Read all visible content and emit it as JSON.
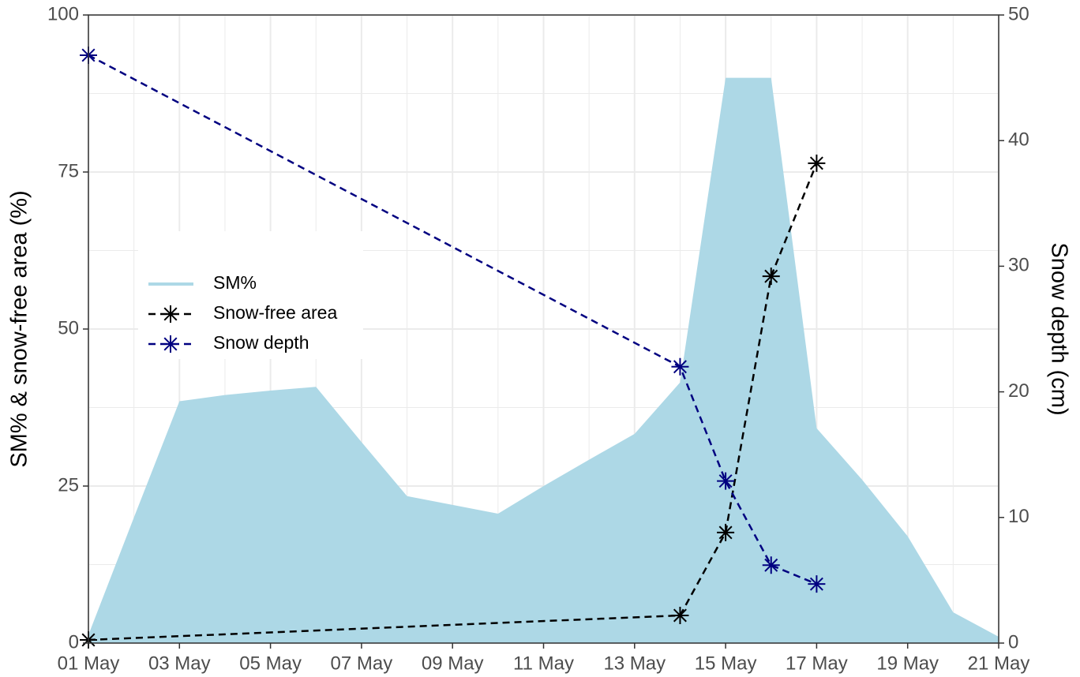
{
  "chart_data": {
    "type": "line",
    "y_label": "SM% & snow-free area (%)",
    "y2_label": "Snow depth (cm)",
    "xlim": [
      "01 May",
      "21 May"
    ],
    "xticks": [
      "01 May",
      "03 May",
      "05 May",
      "07 May",
      "09 May",
      "11 May",
      "13 May",
      "15 May",
      "17 May",
      "19 May",
      "21 May"
    ],
    "ylim": [
      0,
      100
    ],
    "yticks": [
      0,
      25,
      50,
      75,
      100
    ],
    "y2lim": [
      0,
      50
    ],
    "y2ticks": [
      0,
      10,
      20,
      30,
      40,
      50
    ],
    "grid": true,
    "legend_position": "left",
    "series": [
      {
        "name": "SM%",
        "kind": "area",
        "color": "#add8e6",
        "x": [
          "01 May",
          "02 May",
          "03 May",
          "04 May",
          "05 May",
          "06 May",
          "07 May",
          "08 May",
          "09 May",
          "10 May",
          "11 May",
          "12 May",
          "13 May",
          "14 May",
          "15 May",
          "16 May",
          "17 May",
          "18 May",
          "19 May",
          "20 May",
          "21 May"
        ],
        "values": [
          1.3,
          20,
          38.5,
          39.5,
          40.2,
          40.8,
          32,
          23.4,
          22,
          20.6,
          25,
          29.2,
          33.3,
          41.5,
          90,
          90,
          34.2,
          26,
          17,
          4.9,
          1
        ]
      },
      {
        "name": "Snow-free area",
        "kind": "line",
        "color": "#000000",
        "x": [
          "01 May",
          "14 May",
          "15 May",
          "16 May",
          "17 May"
        ],
        "values": [
          0.5,
          4.4,
          17.6,
          58.4,
          76.4
        ]
      },
      {
        "name": "Snow depth",
        "kind": "line",
        "color": "#000080",
        "axis": "y2",
        "x": [
          "01 May",
          "14 May",
          "15 May",
          "16 May",
          "17 May"
        ],
        "values": [
          46.8,
          22,
          12.9,
          6.2,
          4.7
        ]
      }
    ]
  }
}
